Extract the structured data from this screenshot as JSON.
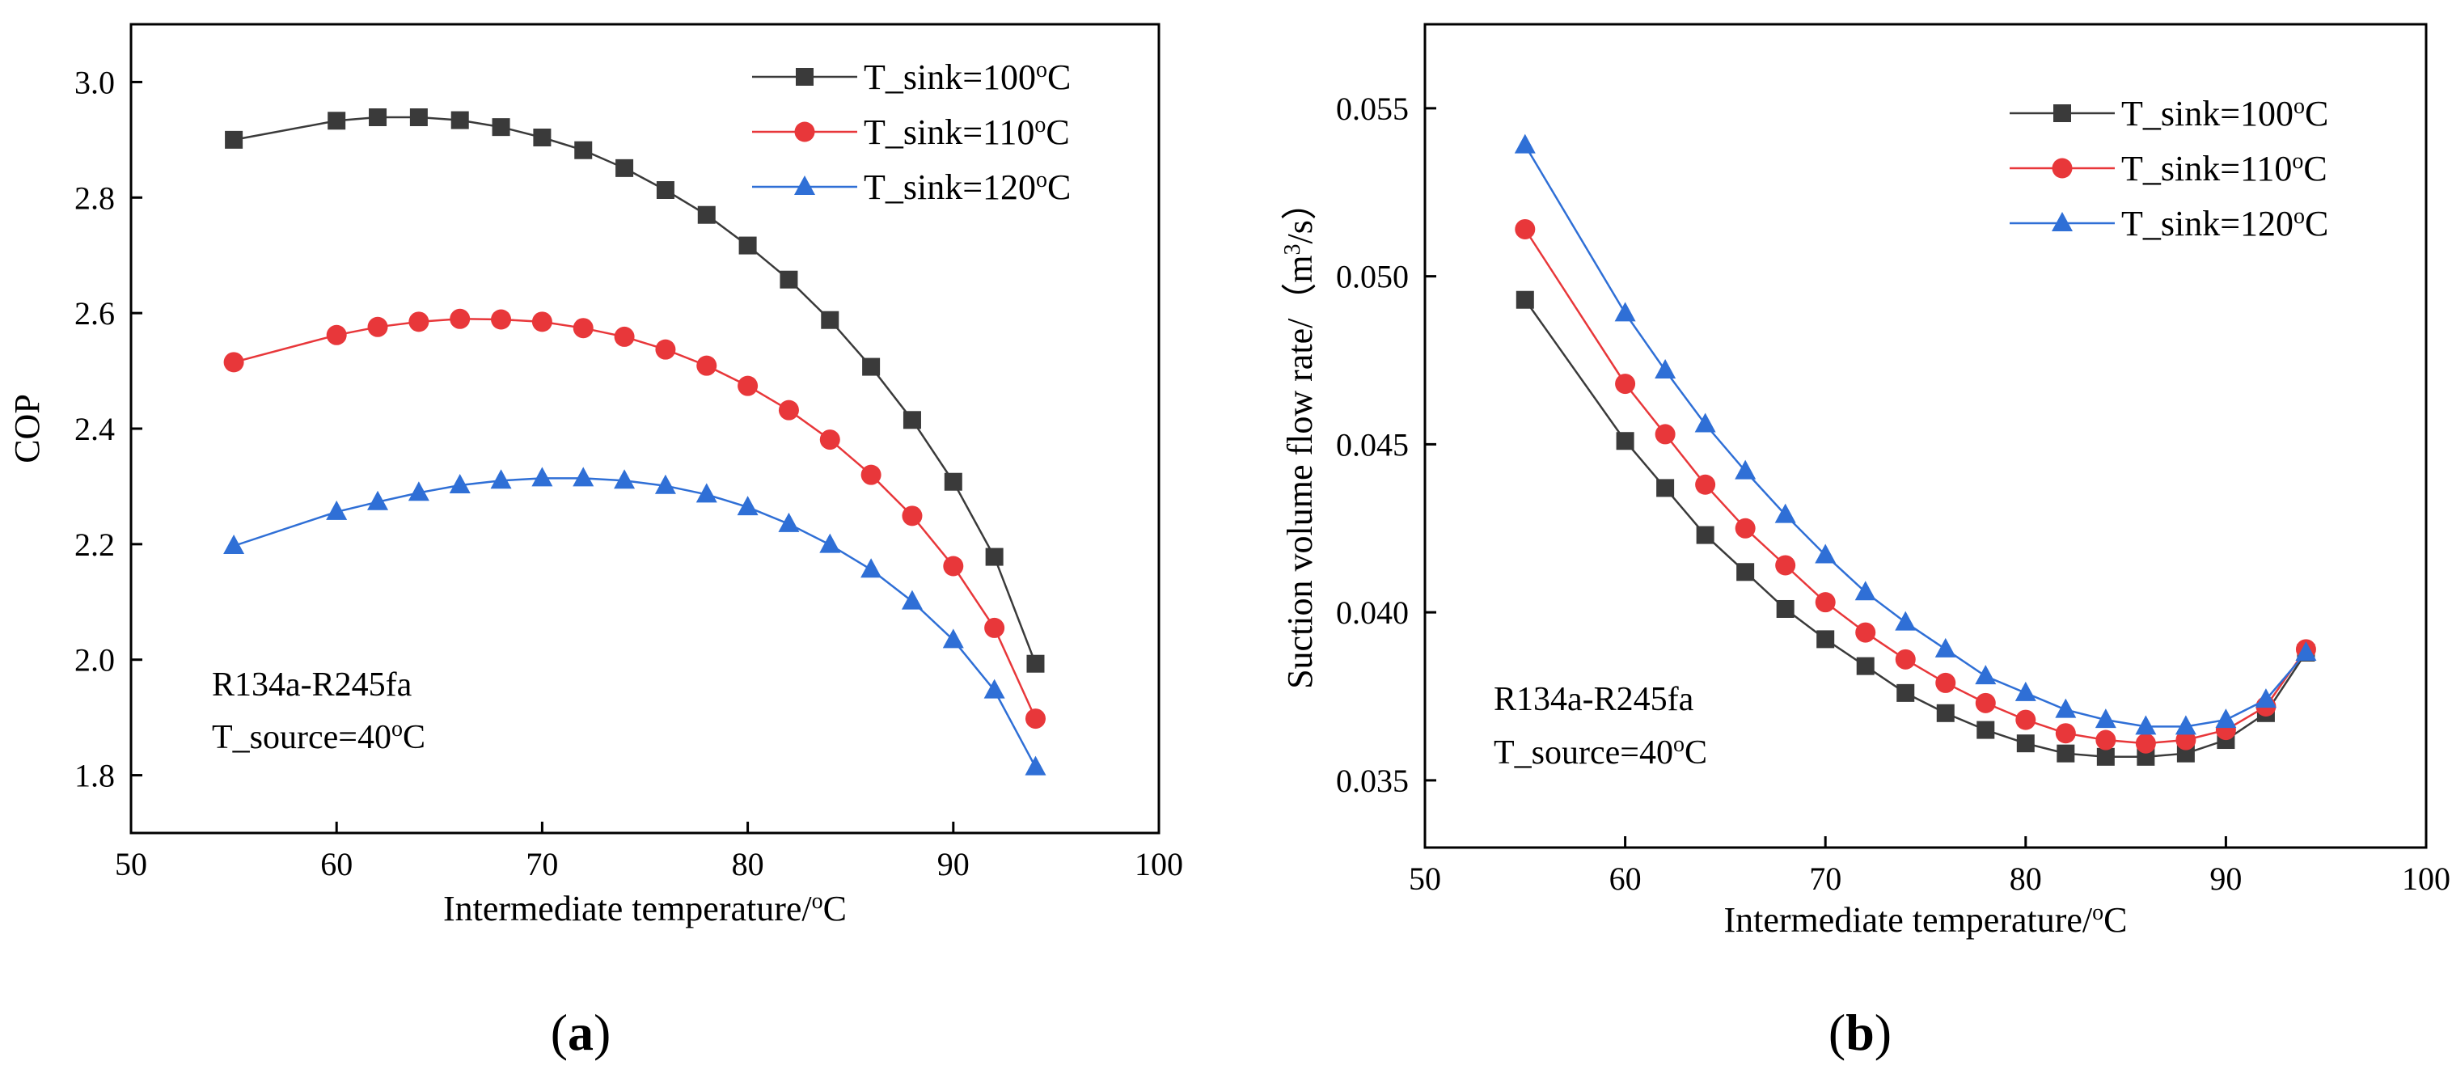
{
  "chart_data": [
    {
      "type": "line",
      "panel_label": "a",
      "xlabel": "Intermediate temperature/",
      "xlabel_sup": "o",
      "xlabel_unit": "C",
      "ylabel": "COP",
      "xlim": [
        50,
        100
      ],
      "ylim": [
        1.7,
        3.1
      ],
      "x_ticks": [
        50,
        60,
        70,
        80,
        90,
        100
      ],
      "y_ticks": [
        1.8,
        2.0,
        2.2,
        2.4,
        2.6,
        2.8,
        3.0
      ],
      "x_tick_labels": [
        "50",
        "60",
        "70",
        "80",
        "90",
        "100"
      ],
      "y_tick_labels": [
        "1.8",
        "2.0",
        "2.2",
        "2.4",
        "2.6",
        "2.8",
        "3.0"
      ],
      "x": [
        55,
        60,
        62,
        64,
        66,
        68,
        70,
        72,
        74,
        76,
        78,
        80,
        82,
        84,
        86,
        88,
        90,
        92,
        94
      ],
      "series": [
        {
          "name": "T_sink=100",
          "sup": "o",
          "unit": "C",
          "color": "#3a3a3a",
          "marker": "square",
          "values": [
            2.9,
            2.933,
            2.939,
            2.939,
            2.934,
            2.922,
            2.904,
            2.882,
            2.851,
            2.813,
            2.77,
            2.717,
            2.658,
            2.588,
            2.507,
            2.415,
            2.308,
            2.178,
            1.993
          ]
        },
        {
          "name": "T_sink=110",
          "sup": "o",
          "unit": "C",
          "color": "#e8373a",
          "marker": "circle",
          "values": [
            2.515,
            2.562,
            2.576,
            2.585,
            2.59,
            2.589,
            2.585,
            2.574,
            2.559,
            2.537,
            2.509,
            2.474,
            2.432,
            2.381,
            2.32,
            2.249,
            2.162,
            2.055,
            1.898
          ]
        },
        {
          "name": "T_sink=120",
          "sup": "o",
          "unit": "C",
          "color": "#2f6fd6",
          "marker": "triangle",
          "values": [
            2.197,
            2.256,
            2.273,
            2.289,
            2.302,
            2.31,
            2.314,
            2.314,
            2.31,
            2.301,
            2.286,
            2.264,
            2.235,
            2.199,
            2.156,
            2.101,
            2.034,
            1.947,
            1.814
          ]
        }
      ],
      "annotation": [
        "R134a-R245fa",
        "T_source=40"
      ],
      "annotation_sup": "o",
      "annotation_unit": "C",
      "legend_position": "top-right"
    },
    {
      "type": "line",
      "panel_label": "b",
      "xlabel": "Intermediate temperature/",
      "xlabel_sup": "o",
      "xlabel_unit": "C",
      "ylabel": "Suction volume flow rate/（m",
      "ylabel_sup": "3",
      "ylabel_tail": "/s）",
      "xlim": [
        50,
        100
      ],
      "ylim": [
        0.033,
        0.0575
      ],
      "x_ticks": [
        50,
        60,
        70,
        80,
        90,
        100
      ],
      "y_ticks": [
        0.035,
        0.04,
        0.045,
        0.05,
        0.055
      ],
      "x_tick_labels": [
        "50",
        "60",
        "70",
        "80",
        "90",
        "100"
      ],
      "y_tick_labels": [
        "0.035",
        "0.040",
        "0.045",
        "0.050",
        "0.055"
      ],
      "x": [
        55,
        60,
        62,
        64,
        66,
        68,
        70,
        72,
        74,
        76,
        78,
        80,
        82,
        84,
        86,
        88,
        90,
        92,
        94
      ],
      "series": [
        {
          "name": "T_sink=100",
          "sup": "o",
          "unit": "C",
          "color": "#3a3a3a",
          "marker": "square",
          "values": [
            0.0493,
            0.0451,
            0.0437,
            0.0423,
            0.0412,
            0.0401,
            0.0392,
            0.0384,
            0.0376,
            0.037,
            0.0365,
            0.0361,
            0.0358,
            0.0357,
            0.0357,
            0.0358,
            0.0362,
            0.037,
            0.0388
          ]
        },
        {
          "name": "T_sink=110",
          "sup": "o",
          "unit": "C",
          "color": "#e8373a",
          "marker": "circle",
          "values": [
            0.0514,
            0.0468,
            0.0453,
            0.0438,
            0.0425,
            0.0414,
            0.0403,
            0.0394,
            0.0386,
            0.0379,
            0.0373,
            0.0368,
            0.0364,
            0.0362,
            0.0361,
            0.0362,
            0.0365,
            0.0372,
            0.0389
          ]
        },
        {
          "name": "T_sink=120",
          "sup": "o",
          "unit": "C",
          "color": "#2f6fd6",
          "marker": "triangle",
          "values": [
            0.0539,
            0.0489,
            0.0472,
            0.0456,
            0.0442,
            0.0429,
            0.0417,
            0.0406,
            0.0397,
            0.0389,
            0.0381,
            0.0376,
            0.0371,
            0.0368,
            0.0366,
            0.0366,
            0.0368,
            0.0374,
            0.0388
          ]
        }
      ],
      "annotation": [
        "R134a-R245fa",
        "T_source=40"
      ],
      "annotation_sup": "o",
      "annotation_unit": "C",
      "legend_position": "top-right"
    }
  ]
}
